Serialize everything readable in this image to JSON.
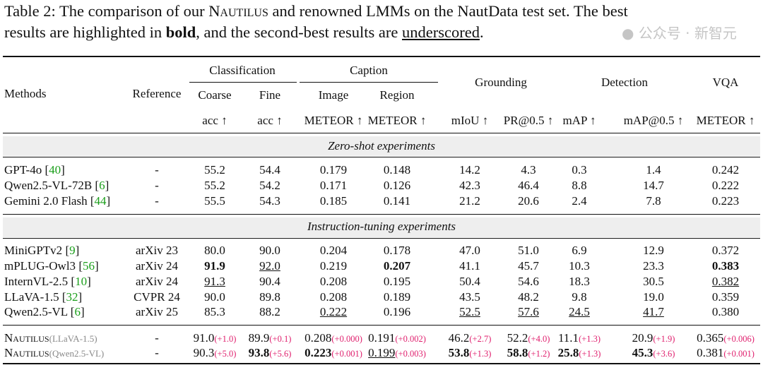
{
  "caption": {
    "line1_a": "Table 2: The comparison of our ",
    "line1_name": "Nautilus",
    "line1_b": " and renowned LMMs on the NautData test set. The best",
    "line2_a": "results are highlighted in ",
    "line2_bold": "bold",
    "line2_b": ", and the second-best results are ",
    "line2_u": "underscored",
    "line2_c": "."
  },
  "header": {
    "methods": "Methods",
    "reference": "Reference",
    "classification": "Classification",
    "caption": "Caption",
    "grounding": "Grounding",
    "detection": "Detection",
    "vqa": "VQA",
    "coarse": "Coarse",
    "fine": "Fine",
    "image": "Image",
    "region": "Region",
    "metrics": [
      "acc ↑",
      "acc ↑",
      "METEOR ↑",
      "METEOR ↑",
      "mIoU ↑",
      "PR@0.5 ↑",
      "mAP ↑",
      "mAP@0.5 ↑",
      "METEOR ↑"
    ]
  },
  "sections": {
    "zero_shot": "Zero-shot experiments",
    "instruction": "Instruction-tuning experiments"
  },
  "zero_shot_rows": [
    {
      "method": "GPT-4o",
      "cite": "40",
      "ref": "-",
      "values": [
        {
          "v": "55.2"
        },
        {
          "v": "54.4"
        },
        {
          "v": "0.179"
        },
        {
          "v": "0.148"
        },
        {
          "v": "14.2"
        },
        {
          "v": "4.3"
        },
        {
          "v": "0.3"
        },
        {
          "v": "1.4"
        },
        {
          "v": "0.242"
        }
      ]
    },
    {
      "method": "Qwen2.5-VL-72B",
      "cite": "6",
      "ref": "-",
      "values": [
        {
          "v": "55.2"
        },
        {
          "v": "54.2"
        },
        {
          "v": "0.171"
        },
        {
          "v": "0.126"
        },
        {
          "v": "42.3"
        },
        {
          "v": "46.4"
        },
        {
          "v": "8.8"
        },
        {
          "v": "14.7"
        },
        {
          "v": "0.222"
        }
      ]
    },
    {
      "method": "Gemini 2.0 Flash",
      "cite": "44",
      "ref": "-",
      "values": [
        {
          "v": "55.5"
        },
        {
          "v": "54.3"
        },
        {
          "v": "0.185"
        },
        {
          "v": "0.141"
        },
        {
          "v": "21.2"
        },
        {
          "v": "20.6"
        },
        {
          "v": "2.4"
        },
        {
          "v": "7.8"
        },
        {
          "v": "0.223"
        }
      ]
    }
  ],
  "instruction_rows": [
    {
      "method": "MiniGPTv2",
      "cite": "9",
      "ref": "arXiv 23",
      "values": [
        {
          "v": "80.0"
        },
        {
          "v": "90.0"
        },
        {
          "v": "0.204"
        },
        {
          "v": "0.178"
        },
        {
          "v": "47.0"
        },
        {
          "v": "51.0"
        },
        {
          "v": "6.9"
        },
        {
          "v": "12.9"
        },
        {
          "v": "0.372"
        }
      ]
    },
    {
      "method": "mPLUG-Owl3",
      "cite": "56",
      "ref": "arXiv 24",
      "values": [
        {
          "v": "91.9",
          "b": true
        },
        {
          "v": "92.0",
          "u": true
        },
        {
          "v": "0.219"
        },
        {
          "v": "0.207",
          "b": true
        },
        {
          "v": "41.1"
        },
        {
          "v": "45.7"
        },
        {
          "v": "10.3"
        },
        {
          "v": "23.3"
        },
        {
          "v": "0.383",
          "b": true
        }
      ]
    },
    {
      "method": "InternVL-2.5",
      "cite": "10",
      "ref": "arXiv 24",
      "values": [
        {
          "v": "91.3",
          "u": true
        },
        {
          "v": "90.4"
        },
        {
          "v": "0.208"
        },
        {
          "v": "0.195"
        },
        {
          "v": "50.4"
        },
        {
          "v": "54.6"
        },
        {
          "v": "18.3"
        },
        {
          "v": "30.5"
        },
        {
          "v": "0.382",
          "u": true
        }
      ]
    },
    {
      "method": "LLaVA-1.5",
      "cite": "32",
      "ref": "CVPR 24",
      "values": [
        {
          "v": "90.0"
        },
        {
          "v": "89.8"
        },
        {
          "v": "0.208"
        },
        {
          "v": "0.189"
        },
        {
          "v": "43.5"
        },
        {
          "v": "48.2"
        },
        {
          "v": "9.8"
        },
        {
          "v": "19.0"
        },
        {
          "v": "0.359"
        }
      ]
    },
    {
      "method": "Qwen2.5-VL",
      "cite": "6",
      "ref": "arXiv 25",
      "values": [
        {
          "v": "85.3"
        },
        {
          "v": "88.2"
        },
        {
          "v": "0.222",
          "u": true
        },
        {
          "v": "0.196"
        },
        {
          "v": "52.5",
          "u": true
        },
        {
          "v": "57.6",
          "u": true
        },
        {
          "v": "24.5",
          "u": true
        },
        {
          "v": "41.7",
          "u": true
        },
        {
          "v": "0.380"
        }
      ]
    }
  ],
  "nautilus_rows": [
    {
      "method": "Nautilus",
      "variant": "(LLaVA-1.5)",
      "ref": "-",
      "values": [
        {
          "v": "91.0",
          "d": "(+1.0)"
        },
        {
          "v": "89.9",
          "d": "(+0.1)"
        },
        {
          "v": "0.208",
          "d": "(+0.000)"
        },
        {
          "v": "0.191",
          "d": "(+0.002)"
        },
        {
          "v": "46.2",
          "d": "(+2.7)"
        },
        {
          "v": "52.2",
          "d": "(+4.0)"
        },
        {
          "v": "11.1",
          "d": "(+1.3)"
        },
        {
          "v": "20.9",
          "d": "(+1.9)"
        },
        {
          "v": "0.365",
          "d": "(+0.006)"
        }
      ]
    },
    {
      "method": "Nautilus",
      "variant": "(Qwen2.5-VL)",
      "ref": "-",
      "values": [
        {
          "v": "90.3",
          "d": "(+5.0)"
        },
        {
          "v": "93.8",
          "b": true,
          "d": "(+5.6)"
        },
        {
          "v": "0.223",
          "b": true,
          "d": "(+0.001)"
        },
        {
          "v": "0.199",
          "u": true,
          "d": "(+0.003)"
        },
        {
          "v": "53.8",
          "b": true,
          "d": "(+1.3)"
        },
        {
          "v": "58.8",
          "b": true,
          "d": "(+1.2)"
        },
        {
          "v": "25.8",
          "b": true,
          "d": "(+1.3)"
        },
        {
          "v": "45.3",
          "b": true,
          "d": "(+3.6)"
        },
        {
          "v": "0.381",
          "d": "(+0.001)"
        }
      ]
    }
  ],
  "watermark": "公众号 · 新智元"
}
